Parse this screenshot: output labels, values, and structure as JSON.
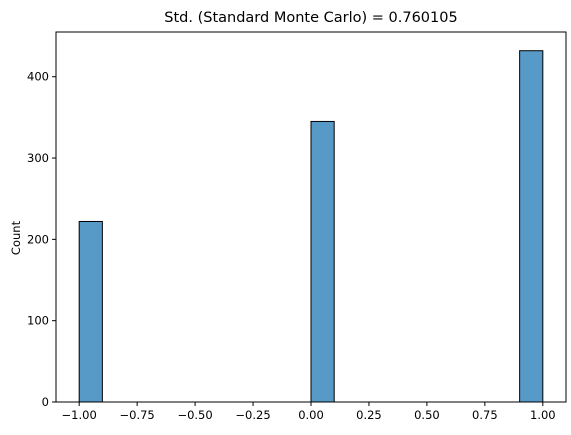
{
  "chart_data": {
    "type": "bar",
    "title": "Std. (Standard Monte Carlo) = 0.760105",
    "xlabel": "",
    "ylabel": "Count",
    "xlim": [
      -1.1,
      1.1
    ],
    "ylim": [
      0,
      455
    ],
    "bin_width": 0.1,
    "bins": [
      {
        "left": -1.0,
        "value": 222
      },
      {
        "left": 0.0,
        "value": 345
      },
      {
        "left": 0.9,
        "value": 432
      }
    ],
    "x_ticks": [
      "−1.00",
      "−0.75",
      "−0.50",
      "−0.25",
      "0.00",
      "0.25",
      "0.50",
      "0.75",
      "1.00"
    ],
    "x_tick_values": [
      -1.0,
      -0.75,
      -0.5,
      -0.25,
      0.0,
      0.25,
      0.5,
      0.75,
      1.0
    ],
    "y_ticks": [
      "0",
      "100",
      "200",
      "300",
      "400"
    ],
    "y_tick_values": [
      0,
      100,
      200,
      300,
      400
    ],
    "grid": false,
    "legend": "none",
    "colors": {
      "bar_fill": "#5799c7",
      "bar_edge": "#000000",
      "axis": "#000000"
    }
  }
}
